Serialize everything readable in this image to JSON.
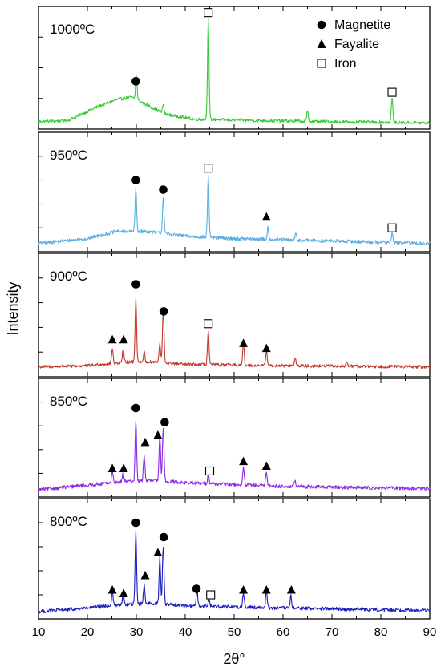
{
  "chart_data": {
    "type": "line",
    "xlabel": "2θ°",
    "ylabel": "Intensity",
    "xlim": [
      10,
      90
    ],
    "x_ticks": [
      "10",
      "20",
      "30",
      "40",
      "50",
      "60",
      "70",
      "80",
      "90"
    ],
    "legend": {
      "placement": "top-right",
      "entries": [
        {
          "label": "Magnetite",
          "marker": "filled-circle"
        },
        {
          "label": "Fayalite",
          "marker": "filled-triangle"
        },
        {
          "label": "Iron",
          "marker": "open-square"
        }
      ]
    },
    "panels": [
      {
        "label": "1000ºC",
        "color": "#33cc33",
        "baseline_points": [
          [
            10,
            0.06
          ],
          [
            16,
            0.07
          ],
          [
            22,
            0.18
          ],
          [
            26,
            0.24
          ],
          [
            29,
            0.26
          ],
          [
            32,
            0.2
          ],
          [
            36,
            0.12
          ],
          [
            42,
            0.08
          ],
          [
            55,
            0.07
          ],
          [
            70,
            0.06
          ],
          [
            90,
            0.05
          ]
        ],
        "peaks": [
          [
            30.0,
            0.2
          ],
          [
            35.5,
            0.07
          ],
          [
            44.7,
            0.82
          ],
          [
            65.0,
            0.08
          ],
          [
            82.3,
            0.2
          ]
        ],
        "noise": 0.025,
        "markers": [
          {
            "type": "circle",
            "x": 29.9,
            "y": 0.39
          },
          {
            "type": "square",
            "x": 44.7,
            "y": 0.95
          },
          {
            "type": "square",
            "x": 82.3,
            "y": 0.3
          }
        ]
      },
      {
        "label": "950ºC",
        "color": "#5aaee0",
        "baseline_points": [
          [
            10,
            0.07
          ],
          [
            20,
            0.11
          ],
          [
            26,
            0.17
          ],
          [
            32,
            0.17
          ],
          [
            40,
            0.13
          ],
          [
            50,
            0.11
          ],
          [
            70,
            0.09
          ],
          [
            90,
            0.07
          ]
        ],
        "peaks": [
          [
            29.9,
            0.36
          ],
          [
            35.5,
            0.3
          ],
          [
            44.7,
            0.52
          ],
          [
            56.9,
            0.1
          ],
          [
            62.6,
            0.05
          ],
          [
            82.3,
            0.08
          ]
        ],
        "noise": 0.03,
        "markers": [
          {
            "type": "circle",
            "x": 29.9,
            "y": 0.6
          },
          {
            "type": "circle",
            "x": 35.5,
            "y": 0.52
          },
          {
            "type": "square",
            "x": 44.7,
            "y": 0.7
          },
          {
            "type": "triangle",
            "x": 56.6,
            "y": 0.29
          },
          {
            "type": "square",
            "x": 82.3,
            "y": 0.2
          }
        ]
      },
      {
        "label": "900ºC",
        "color": "#c0392b",
        "baseline_points": [
          [
            10,
            0.08
          ],
          [
            20,
            0.09
          ],
          [
            28,
            0.12
          ],
          [
            34,
            0.12
          ],
          [
            40,
            0.1
          ],
          [
            60,
            0.09
          ],
          [
            90,
            0.08
          ]
        ],
        "peaks": [
          [
            25.1,
            0.12
          ],
          [
            27.3,
            0.1
          ],
          [
            29.9,
            0.52
          ],
          [
            31.6,
            0.08
          ],
          [
            34.8,
            0.15
          ],
          [
            35.5,
            0.42
          ],
          [
            44.7,
            0.28
          ],
          [
            51.9,
            0.18
          ],
          [
            56.6,
            0.12
          ],
          [
            62.5,
            0.06
          ],
          [
            73.0,
            0.04
          ]
        ],
        "noise": 0.025,
        "markers": [
          {
            "type": "triangle",
            "x": 25.1,
            "y": 0.3
          },
          {
            "type": "triangle",
            "x": 27.4,
            "y": 0.3
          },
          {
            "type": "circle",
            "x": 29.9,
            "y": 0.75
          },
          {
            "type": "circle",
            "x": 35.6,
            "y": 0.53
          },
          {
            "type": "square",
            "x": 44.7,
            "y": 0.43
          },
          {
            "type": "triangle",
            "x": 51.9,
            "y": 0.27
          },
          {
            "type": "triangle",
            "x": 56.6,
            "y": 0.23
          }
        ]
      },
      {
        "label": "850ºC",
        "color": "#8a2be2",
        "baseline_points": [
          [
            10,
            0.06
          ],
          [
            20,
            0.1
          ],
          [
            28,
            0.13
          ],
          [
            34,
            0.14
          ],
          [
            40,
            0.12
          ],
          [
            60,
            0.09
          ],
          [
            90,
            0.07
          ]
        ],
        "peaks": [
          [
            25.1,
            0.1
          ],
          [
            27.3,
            0.08
          ],
          [
            29.9,
            0.52
          ],
          [
            31.6,
            0.22
          ],
          [
            34.8,
            0.38
          ],
          [
            35.5,
            0.45
          ],
          [
            44.7,
            0.08
          ],
          [
            51.9,
            0.14
          ],
          [
            56.6,
            0.12
          ],
          [
            62.4,
            0.05
          ]
        ],
        "noise": 0.03,
        "markers": [
          {
            "type": "triangle",
            "x": 25.1,
            "y": 0.24
          },
          {
            "type": "triangle",
            "x": 27.4,
            "y": 0.24
          },
          {
            "type": "circle",
            "x": 29.9,
            "y": 0.75
          },
          {
            "type": "triangle",
            "x": 31.8,
            "y": 0.46
          },
          {
            "type": "triangle",
            "x": 34.4,
            "y": 0.52
          },
          {
            "type": "circle",
            "x": 35.8,
            "y": 0.63
          },
          {
            "type": "square",
            "x": 45.0,
            "y": 0.22
          },
          {
            "type": "triangle",
            "x": 51.9,
            "y": 0.3
          },
          {
            "type": "triangle",
            "x": 56.6,
            "y": 0.26
          }
        ]
      },
      {
        "label": "800ºC",
        "color": "#1c1cc0",
        "baseline_points": [
          [
            10,
            0.06
          ],
          [
            20,
            0.09
          ],
          [
            28,
            0.12
          ],
          [
            34,
            0.13
          ],
          [
            40,
            0.11
          ],
          [
            60,
            0.09
          ],
          [
            90,
            0.07
          ]
        ],
        "peaks": [
          [
            25.1,
            0.12
          ],
          [
            27.3,
            0.1
          ],
          [
            29.9,
            0.6
          ],
          [
            31.6,
            0.16
          ],
          [
            34.8,
            0.38
          ],
          [
            35.5,
            0.48
          ],
          [
            42.4,
            0.12
          ],
          [
            44.9,
            0.05
          ],
          [
            51.9,
            0.12
          ],
          [
            56.6,
            0.14
          ],
          [
            61.6,
            0.1
          ]
        ],
        "noise": 0.03,
        "markers": [
          {
            "type": "triangle",
            "x": 25.1,
            "y": 0.24
          },
          {
            "type": "triangle",
            "x": 27.4,
            "y": 0.21
          },
          {
            "type": "circle",
            "x": 29.9,
            "y": 0.8
          },
          {
            "type": "triangle",
            "x": 31.8,
            "y": 0.36
          },
          {
            "type": "triangle",
            "x": 34.4,
            "y": 0.55
          },
          {
            "type": "circle",
            "x": 35.6,
            "y": 0.68
          },
          {
            "type": "circle",
            "x": 42.3,
            "y": 0.25
          },
          {
            "type": "square",
            "x": 45.2,
            "y": 0.2
          },
          {
            "type": "triangle",
            "x": 51.9,
            "y": 0.24
          },
          {
            "type": "triangle",
            "x": 56.6,
            "y": 0.24
          },
          {
            "type": "triangle",
            "x": 61.7,
            "y": 0.24
          }
        ]
      }
    ]
  }
}
